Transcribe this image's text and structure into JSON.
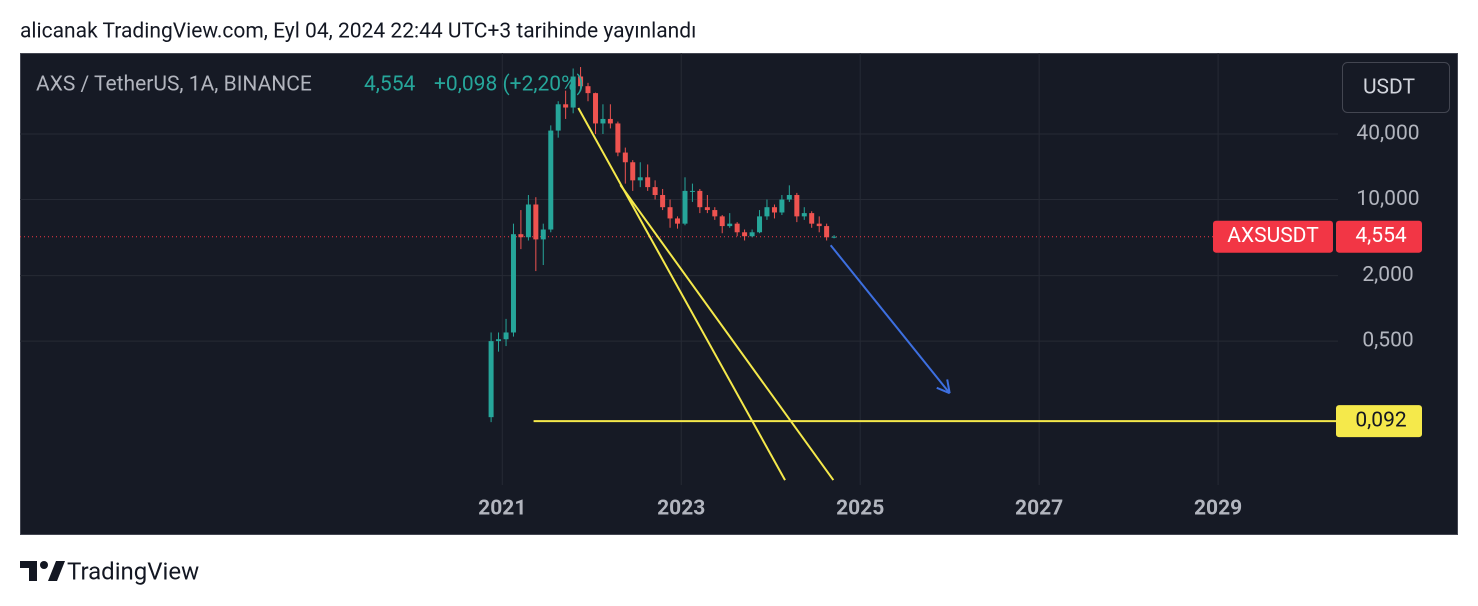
{
  "header": {
    "text": "alicanak TradingView.com, Eyl 04, 2024 22:44 UTC+3 tarihinde yayınlandı"
  },
  "footer": {
    "brand": "TradingView"
  },
  "chart_data": {
    "type": "candlestick",
    "title": "AXS / TetherUS, 1A, BINANCE",
    "change_label": "+0,098 (+2,20%)",
    "currency": "USDT",
    "up_color": "#26a69a",
    "down_color": "#ef5350",
    "log_scale": true,
    "grid": true,
    "x": [
      2020.875,
      2020.958,
      2021.042,
      2021.125,
      2021.208,
      2021.292,
      2021.375,
      2021.458,
      2021.542,
      2021.625,
      2021.708,
      2021.792,
      2021.875,
      2021.958,
      2022.042,
      2022.125,
      2022.208,
      2022.292,
      2022.375,
      2022.458,
      2022.542,
      2022.625,
      2022.708,
      2022.792,
      2022.875,
      2022.958,
      2023.042,
      2023.125,
      2023.208,
      2023.292,
      2023.375,
      2023.458,
      2023.542,
      2023.625,
      2023.708,
      2023.792,
      2023.875,
      2023.958,
      2024.042,
      2024.125,
      2024.208,
      2024.292,
      2024.375,
      2024.458,
      2024.542,
      2024.625,
      2024.708
    ],
    "open": [
      0.1,
      0.5,
      0.52,
      0.6,
      4.8,
      4.5,
      9,
      4.3,
      5.3,
      43,
      75,
      70,
      135,
      110,
      95,
      50,
      55,
      50,
      27,
      22,
      15,
      16,
      13,
      11,
      8.5,
      6.7,
      6,
      12,
      12,
      8.5,
      8,
      7,
      5.7,
      6,
      5,
      4.6,
      5,
      7,
      8.5,
      7.6,
      10,
      11,
      7,
      7.5,
      6,
      5.7,
      4.5
    ],
    "high": [
      0.6,
      0.6,
      0.8,
      6,
      8,
      11,
      10.5,
      6,
      48,
      80,
      100,
      160,
      165,
      118,
      96,
      75,
      75,
      52,
      30,
      23,
      22,
      21,
      15,
      12.5,
      10,
      7,
      16,
      14,
      12.5,
      11,
      8.5,
      7.2,
      7.5,
      6.2,
      5.3,
      5.3,
      8,
      10,
      9,
      11,
      13.5,
      11.5,
      8.5,
      7.8,
      7,
      6,
      4.7
    ],
    "low": [
      0.09,
      0.4,
      0.45,
      0.55,
      3.5,
      4.2,
      2.2,
      2.5,
      5,
      37,
      55,
      62,
      100,
      80,
      40,
      40,
      45,
      25,
      14,
      12,
      13,
      12,
      10,
      8,
      5.5,
      5.4,
      5.8,
      9.5,
      7.5,
      7.5,
      6.5,
      4.9,
      5.5,
      4.6,
      4.2,
      4.5,
      4.9,
      6.5,
      6.7,
      7.2,
      9.5,
      6.2,
      6.5,
      5.5,
      5,
      4.2,
      4.4
    ],
    "close": [
      0.5,
      0.52,
      0.6,
      4.8,
      4.5,
      9,
      4.3,
      5.3,
      43,
      75,
      70,
      135,
      110,
      95,
      50,
      55,
      50,
      27,
      22,
      15,
      16,
      13,
      11,
      8.5,
      6.7,
      6,
      12,
      12,
      8.5,
      8,
      7,
      5.7,
      6,
      5,
      4.6,
      5,
      7,
      8.5,
      7.6,
      10,
      11,
      7,
      7.5,
      6,
      5.7,
      4.5,
      4.554
    ],
    "xlim": [
      2015.61,
      2030.34
    ],
    "xticks": [
      2021,
      2023,
      2025,
      2027,
      2029
    ],
    "ylim": [
      0.0238,
      222
    ],
    "yticks": [
      {
        "value": 40,
        "label": "40,000"
      },
      {
        "value": 10,
        "label": "10,000"
      },
      {
        "value": 2,
        "label": "2,000"
      },
      {
        "value": 0.5,
        "label": "0,500"
      }
    ],
    "price_line": {
      "name": "AXSUSDT",
      "value": 4.554,
      "label": "4,554",
      "color": "#f23645"
    },
    "horizontal_line": {
      "value": 0.092,
      "label": "0,092",
      "x_start": 2021.35,
      "color": "#f5e94b"
    },
    "trend_lines": [
      {
        "x": [
          2021.85,
          2024.16
        ],
        "y": [
          69.3,
          0.0264
        ],
        "color": "#f5e94b"
      },
      {
        "x": [
          2022.32,
          2024.7
        ],
        "y": [
          13.6,
          0.0264
        ],
        "color": "#f5e94b"
      }
    ],
    "arrow": {
      "x": [
        2024.67,
        2026.0
      ],
      "y": [
        3.8,
        0.166
      ],
      "color": "#3d6fe0"
    }
  }
}
